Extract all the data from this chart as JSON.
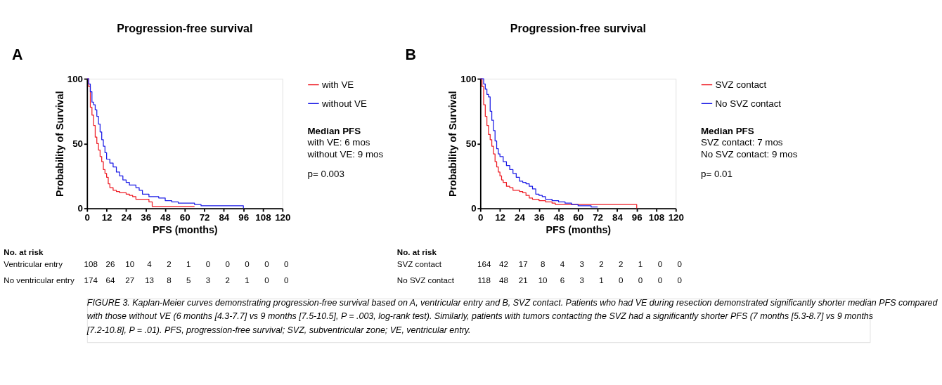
{
  "chart_data": [
    {
      "type": "step",
      "title": "Progression-free survival",
      "xlabel": "PFS (months)",
      "ylabel": "Probability of Survival",
      "xlim": [
        0,
        120
      ],
      "ylim": [
        0,
        100
      ],
      "xticks": [
        0,
        12,
        24,
        36,
        48,
        60,
        72,
        84,
        96,
        108,
        120
      ],
      "yticks": [
        0,
        50,
        100
      ],
      "grid": false,
      "legend": "right",
      "marker": "none",
      "line_style": "solid",
      "series": [
        {
          "name": "with VE",
          "color": "#ee1c25",
          "x": [
            0,
            1,
            2,
            3,
            4,
            5,
            6,
            7,
            8,
            9,
            10,
            11,
            12,
            13,
            14,
            16,
            18,
            20,
            24,
            26,
            28,
            30,
            38,
            40,
            66
          ],
          "values": [
            100,
            94,
            78,
            72,
            64,
            55,
            50,
            45,
            40,
            36,
            30,
            27,
            24,
            19,
            16,
            14,
            13,
            12,
            11,
            10,
            9,
            7,
            5,
            1.5,
            1.5
          ]
        },
        {
          "name": "without VE",
          "color": "#1c1ce6",
          "x": [
            0,
            1,
            2,
            3,
            4,
            5,
            6,
            7,
            8,
            9,
            10,
            11,
            12,
            14,
            16,
            18,
            20,
            22,
            24,
            26,
            30,
            32,
            34,
            38,
            44,
            48,
            52,
            56,
            66,
            70,
            96
          ],
          "values": [
            100,
            96,
            90,
            82,
            80,
            76,
            71,
            65,
            59,
            53,
            48,
            43,
            38,
            35,
            32,
            28,
            25,
            22,
            20,
            18,
            16,
            14,
            11,
            9,
            8,
            6,
            5,
            4,
            3,
            2,
            0
          ]
        }
      ],
      "annotations": [
        "A",
        "Median PFS",
        "with VE: 6 mos",
        "without VE: 9 mos",
        "p= 0.003",
        "No. at risk",
        "Ventricular entry",
        "108 26 10 4 2 1 0 0 0 0 0",
        "No ventricular entry",
        "174 64 27 13 8 5 3 2 1 0 0",
        "FIGURE 3. Kaplan-Meier curves demonstrating progression-free survival based on A, ventricular entry and B, SVZ contact. Patients who had VE during resection demonstrated significantly shorter median PFS compared with those without VE (6 months [4.3-7.7] vs 9 months [7.5-10.5], P = .003, log-rank test). Similarly, patients with tumors contacting the SVZ had a significantly shorter PFS (7 months [5.3-8.7] vs 9 months [7.2-10.8], P = .01). PFS, progression-free survival; SVZ, subventricular zone; VE, ventricular entry."
      ]
    },
    {
      "type": "step",
      "title": "Progression-free survival",
      "xlabel": "PFS (months)",
      "ylabel": "Probability of Survival",
      "xlim": [
        0,
        120
      ],
      "ylim": [
        0,
        100
      ],
      "xticks": [
        0,
        12,
        24,
        36,
        48,
        60,
        72,
        84,
        96,
        108,
        120
      ],
      "yticks": [
        0,
        50,
        100
      ],
      "grid": false,
      "legend": "right",
      "marker": "none",
      "line_style": "solid",
      "series": [
        {
          "name": "SVZ contact",
          "color": "#ee1c25",
          "x": [
            0,
            1,
            2,
            3,
            4,
            5,
            6,
            7,
            8,
            9,
            10,
            11,
            12,
            13,
            14,
            16,
            18,
            20,
            24,
            26,
            28,
            30,
            32,
            36,
            40,
            44,
            46,
            96
          ],
          "values": [
            100,
            94,
            80,
            71,
            64,
            57,
            53,
            48,
            42,
            36,
            32,
            28,
            25,
            22,
            20,
            17,
            16,
            14,
            13,
            12,
            10,
            8,
            7,
            6,
            5,
            4,
            3,
            0
          ]
        },
        {
          "name": "No SVZ contact",
          "color": "#1c1ce6",
          "x": [
            0,
            2,
            3,
            4,
            5,
            6,
            7,
            8,
            9,
            10,
            11,
            12,
            14,
            16,
            18,
            20,
            22,
            24,
            26,
            28,
            30,
            32,
            34,
            36,
            38,
            40,
            44,
            48,
            52,
            56,
            60,
            68,
            72
          ],
          "values": [
            100,
            96,
            92,
            88,
            86,
            75,
            68,
            60,
            52,
            46,
            42,
            40,
            36,
            33,
            30,
            27,
            24,
            21,
            20,
            19,
            17,
            15,
            11,
            10,
            9,
            7,
            6,
            5,
            4,
            3,
            2,
            1,
            1
          ]
        }
      ],
      "annotations": [
        "B",
        "Median PFS",
        "SVZ contact: 7 mos",
        "No SVZ contact: 9 mos",
        "p= 0.01",
        "No. at risk",
        "SVZ contact",
        "164 42 17 8 4 3 2 2 1 0 0",
        "No SVZ contact",
        "118 48 21 10 6 3 1 0 0 0 0"
      ]
    }
  ]
}
